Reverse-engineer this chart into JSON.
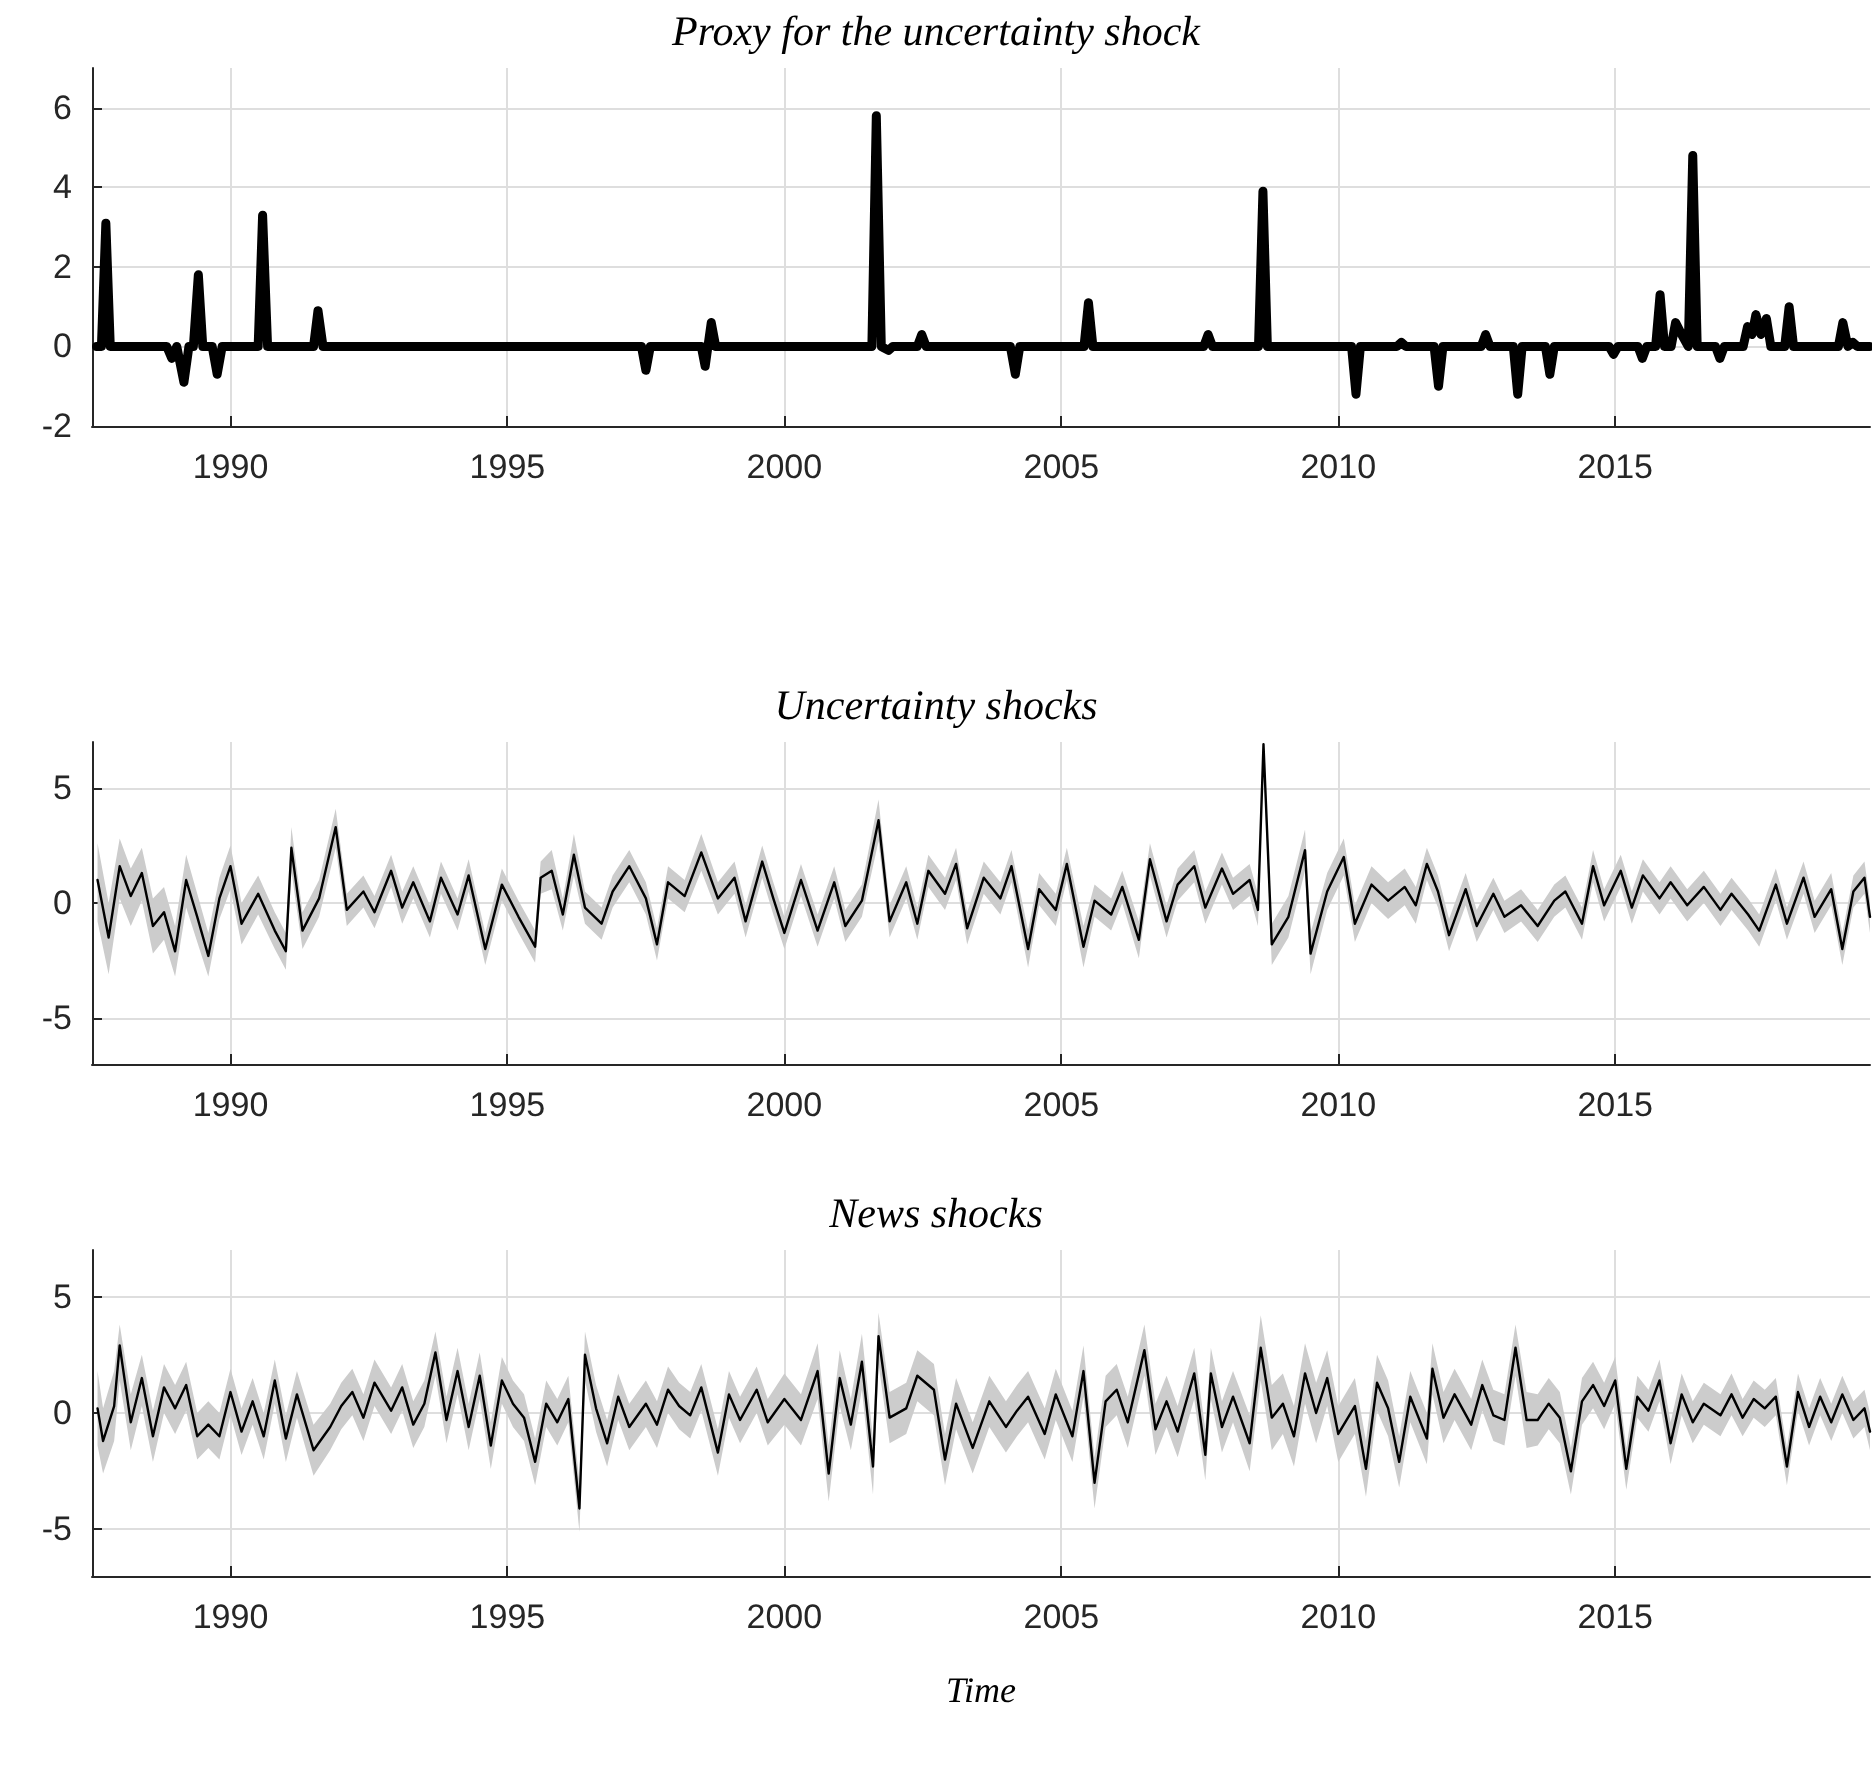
{
  "chart_data": [
    {
      "type": "line",
      "title": "Proxy for the uncertainty shock",
      "xlim": [
        1987.5,
        2019.6
      ],
      "xticks": [
        1990,
        1995,
        2000,
        2005,
        2010,
        2015
      ],
      "ylim": [
        -2,
        7
      ],
      "yticks": [
        -2,
        0,
        2,
        4,
        6
      ],
      "grid": true,
      "series": [
        {
          "color": "#000000",
          "x": [
            1987.58,
            1987.67,
            1987.75,
            1987.83,
            1988.85,
            1988.94,
            1989.03,
            1989.16,
            1989.25,
            1989.33,
            1989.42,
            1989.5,
            1989.67,
            1989.76,
            1989.85,
            1990.5,
            1990.58,
            1990.67,
            1991.5,
            1991.58,
            1991.67,
            1997.42,
            1997.5,
            1997.58,
            1998.5,
            1998.57,
            1998.68,
            1998.76,
            2001.58,
            2001.66,
            2001.75,
            2001.88,
            2001.96,
            2002.4,
            2002.48,
            2002.56,
            2004.08,
            2004.17,
            2004.25,
            2005.41,
            2005.49,
            2005.57,
            2007.57,
            2007.65,
            2007.73,
            2008.56,
            2008.64,
            2008.72,
            2010.24,
            2010.32,
            2010.4,
            2011.06,
            2011.14,
            2011.22,
            2011.73,
            2011.81,
            2011.89,
            2012.58,
            2012.66,
            2012.74,
            2013.16,
            2013.24,
            2013.32,
            2013.74,
            2013.82,
            2013.9,
            2014.89,
            2014.97,
            2015.05,
            2015.41,
            2015.49,
            2015.57,
            2015.73,
            2015.81,
            2015.89,
            2016.01,
            2016.09,
            2016.2,
            2016.32,
            2016.4,
            2016.48,
            2016.81,
            2016.89,
            2016.97,
            2017.31,
            2017.39,
            2017.47,
            2017.54,
            2017.63,
            2017.73,
            2017.81,
            2018.06,
            2018.14,
            2018.22,
            2019.03,
            2019.11,
            2019.2,
            2019.29,
            2019.37,
            2019.6
          ],
          "values": [
            0,
            0,
            3.1,
            0,
            0,
            -0.3,
            0,
            -0.9,
            0,
            0,
            1.8,
            0,
            0,
            -0.7,
            0,
            0,
            3.3,
            0,
            0,
            0.9,
            0,
            0,
            -0.6,
            0,
            0,
            -0.5,
            0.6,
            0,
            0,
            5.8,
            0,
            -0.1,
            0,
            0,
            0.3,
            0,
            0,
            -0.7,
            0,
            0,
            1.1,
            0,
            0,
            0.3,
            0,
            0,
            3.9,
            0,
            0,
            -1.2,
            0,
            0,
            0.1,
            0,
            0,
            -1.0,
            0,
            0,
            0.3,
            0,
            0,
            -1.2,
            0,
            0,
            -0.7,
            0,
            0,
            -0.2,
            0,
            0,
            -0.3,
            0,
            0,
            1.3,
            0,
            0,
            0.6,
            0.3,
            0,
            4.8,
            0,
            0,
            -0.3,
            0,
            0,
            0.5,
            0.3,
            0.8,
            0.3,
            0.7,
            0,
            0,
            1.0,
            0,
            0,
            0.6,
            0,
            0.1,
            0,
            0
          ]
        }
      ]
    },
    {
      "type": "line",
      "title": "Uncertainty shocks",
      "xlim": [
        1987.5,
        2019.6
      ],
      "xticks": [
        1990,
        1995,
        2000,
        2005,
        2010,
        2015
      ],
      "ylim": [
        -7,
        7
      ],
      "yticks": [
        -5,
        0,
        5
      ],
      "grid": true,
      "series": [
        {
          "color": "#000000",
          "x": [
            1987.6,
            1987.8,
            1988.0,
            1988.2,
            1988.4,
            1988.6,
            1988.8,
            1989.0,
            1989.2,
            1989.4,
            1989.6,
            1989.8,
            1990.0,
            1990.2,
            1990.5,
            1990.8,
            1991.0,
            1991.1,
            1991.3,
            1991.6,
            1991.9,
            1992.1,
            1992.4,
            1992.6,
            1992.9,
            1993.1,
            1993.3,
            1993.6,
            1993.8,
            1994.1,
            1994.3,
            1994.6,
            1994.9,
            1995.2,
            1995.5,
            1995.6,
            1995.8,
            1996.0,
            1996.2,
            1996.4,
            1996.7,
            1996.9,
            1997.2,
            1997.5,
            1997.7,
            1997.9,
            1998.2,
            1998.5,
            1998.8,
            1999.1,
            1999.3,
            1999.6,
            1999.8,
            2000.0,
            2000.3,
            2000.6,
            2000.9,
            2001.1,
            2001.4,
            2001.7,
            2001.9,
            2002.2,
            2002.4,
            2002.6,
            2002.9,
            2003.1,
            2003.3,
            2003.6,
            2003.9,
            2004.1,
            2004.4,
            2004.6,
            2004.9,
            2005.1,
            2005.4,
            2005.6,
            2005.9,
            2006.1,
            2006.4,
            2006.6,
            2006.9,
            2007.1,
            2007.4,
            2007.6,
            2007.9,
            2008.1,
            2008.4,
            2008.55,
            2008.65,
            2008.8,
            2009.1,
            2009.4,
            2009.5,
            2009.8,
            2010.1,
            2010.3,
            2010.6,
            2010.9,
            2011.2,
            2011.4,
            2011.6,
            2011.8,
            2012.0,
            2012.3,
            2012.5,
            2012.8,
            2013.0,
            2013.3,
            2013.6,
            2013.9,
            2014.1,
            2014.4,
            2014.6,
            2014.8,
            2015.1,
            2015.3,
            2015.5,
            2015.8,
            2016.0,
            2016.3,
            2016.6,
            2016.9,
            2017.1,
            2017.4,
            2017.6,
            2017.9,
            2018.1,
            2018.4,
            2018.6,
            2018.9,
            2019.1,
            2019.3,
            2019.5,
            2019.6
          ],
          "values": [
            1.0,
            -1.5,
            1.6,
            0.3,
            1.3,
            -1.0,
            -0.4,
            -2.1,
            1.0,
            -0.6,
            -2.3,
            0.2,
            1.6,
            -0.9,
            0.4,
            -1.2,
            -2.1,
            2.4,
            -1.2,
            0.2,
            3.3,
            -0.3,
            0.5,
            -0.4,
            1.4,
            -0.2,
            0.9,
            -0.8,
            1.1,
            -0.5,
            1.2,
            -2.0,
            0.8,
            -0.6,
            -1.9,
            1.1,
            1.4,
            -0.5,
            2.1,
            -0.2,
            -0.9,
            0.5,
            1.6,
            0.2,
            -1.8,
            0.9,
            0.3,
            2.2,
            0.2,
            1.1,
            -0.8,
            1.8,
            0.2,
            -1.3,
            1.0,
            -1.2,
            0.9,
            -1.0,
            0.1,
            3.6,
            -0.8,
            0.9,
            -0.9,
            1.4,
            0.4,
            1.7,
            -1.1,
            1.1,
            0.2,
            1.6,
            -2.0,
            0.6,
            -0.3,
            1.7,
            -1.9,
            0.1,
            -0.5,
            0.7,
            -1.6,
            1.9,
            -0.8,
            0.8,
            1.6,
            -0.2,
            1.5,
            0.4,
            1.0,
            -0.3,
            6.9,
            -1.8,
            -0.6,
            2.3,
            -2.2,
            0.5,
            2.0,
            -0.9,
            0.8,
            0.1,
            0.7,
            -0.1,
            1.7,
            0.5,
            -1.4,
            0.6,
            -1.0,
            0.4,
            -0.6,
            -0.1,
            -1.0,
            0.1,
            0.5,
            -0.9,
            1.6,
            -0.1,
            1.4,
            -0.2,
            1.2,
            0.2,
            0.9,
            -0.1,
            0.7,
            -0.3,
            0.4,
            -0.5,
            -1.2,
            0.8,
            -0.9,
            1.1,
            -0.6,
            0.6,
            -2.0,
            0.5,
            1.1,
            -0.6
          ],
          "lower": [
            -0.8,
            -3.1,
            0.2,
            -1.0,
            0.1,
            -2.2,
            -1.6,
            -3.2,
            -0.2,
            -1.7,
            -3.2,
            -0.7,
            0.6,
            -1.8,
            -0.5,
            -2.0,
            -2.9,
            1.4,
            -2.0,
            -0.6,
            2.4,
            -1.0,
            -0.2,
            -1.1,
            0.7,
            -0.9,
            0.2,
            -1.5,
            0.4,
            -1.2,
            0.5,
            -2.7,
            0.1,
            -1.3,
            -2.6,
            0.4,
            0.6,
            -1.2,
            1.2,
            -0.9,
            -1.6,
            -0.2,
            0.9,
            -0.5,
            -2.5,
            0.2,
            -0.4,
            1.4,
            -0.5,
            0.4,
            -1.5,
            1.1,
            -0.5,
            -2.0,
            0.3,
            -1.9,
            0.2,
            -1.7,
            -0.6,
            2.7,
            -1.5,
            0.2,
            -1.6,
            0.7,
            -0.3,
            1.0,
            -1.8,
            0.4,
            -0.5,
            0.9,
            -2.8,
            -0.1,
            -1.0,
            1.0,
            -2.8,
            -0.6,
            -1.2,
            0.0,
            -2.4,
            1.2,
            -1.5,
            0.1,
            0.9,
            -0.9,
            0.8,
            -0.3,
            0.3,
            -1.0,
            6.0,
            -2.7,
            -1.5,
            1.4,
            -3.1,
            -0.3,
            1.2,
            -1.7,
            0.0,
            -0.7,
            -0.1,
            -0.9,
            1.0,
            -0.2,
            -2.1,
            -0.1,
            -1.7,
            -0.3,
            -1.3,
            -0.8,
            -1.7,
            -0.6,
            -0.2,
            -1.6,
            0.9,
            -0.8,
            0.7,
            -0.9,
            0.5,
            -0.5,
            0.2,
            -0.8,
            0.0,
            -1.0,
            -0.3,
            -1.2,
            -1.9,
            0.1,
            -1.6,
            0.4,
            -1.3,
            -0.1,
            -2.7,
            -0.2,
            0.4,
            -1.3
          ],
          "upper": [
            2.6,
            0.0,
            2.8,
            1.5,
            2.4,
            0.2,
            0.7,
            -1.0,
            2.1,
            0.4,
            -1.3,
            1.1,
            2.5,
            0.0,
            1.2,
            -0.4,
            -1.3,
            3.3,
            -0.4,
            1.0,
            4.1,
            0.4,
            1.2,
            0.3,
            2.1,
            0.5,
            1.6,
            -0.1,
            1.8,
            0.2,
            1.9,
            -1.3,
            1.5,
            0.1,
            -1.2,
            1.8,
            2.3,
            0.2,
            3.0,
            0.5,
            -0.2,
            1.2,
            2.3,
            0.9,
            -1.1,
            1.6,
            1.0,
            3.0,
            0.9,
            1.8,
            -0.1,
            2.5,
            0.9,
            -0.6,
            1.7,
            -0.5,
            1.6,
            -0.3,
            0.8,
            4.5,
            -0.1,
            1.6,
            -0.2,
            2.1,
            1.1,
            2.4,
            -0.4,
            1.8,
            0.9,
            2.3,
            -1.2,
            1.3,
            0.4,
            2.4,
            -1.0,
            0.8,
            0.2,
            1.4,
            -0.8,
            2.6,
            -0.1,
            1.5,
            2.3,
            0.5,
            2.2,
            1.1,
            1.7,
            0.4,
            7.0,
            -0.9,
            0.3,
            3.2,
            -1.3,
            1.3,
            2.8,
            -0.1,
            1.6,
            0.9,
            1.5,
            0.7,
            2.4,
            1.2,
            -0.7,
            1.3,
            -0.3,
            1.1,
            0.1,
            0.6,
            -0.3,
            0.8,
            1.2,
            -0.2,
            2.3,
            0.6,
            2.1,
            0.5,
            1.9,
            0.9,
            1.6,
            0.6,
            1.4,
            0.4,
            1.1,
            0.2,
            -0.5,
            1.5,
            -0.2,
            1.8,
            0.1,
            1.3,
            -1.3,
            1.2,
            1.8,
            0.1
          ]
        }
      ]
    },
    {
      "type": "line",
      "title": "News shocks",
      "xlabel": "Time",
      "xlim": [
        1987.5,
        2019.6
      ],
      "xticks": [
        1990,
        1995,
        2000,
        2005,
        2010,
        2015
      ],
      "ylim": [
        -7,
        7
      ],
      "yticks": [
        -5,
        0,
        5
      ],
      "grid": true,
      "series": [
        {
          "color": "#000000",
          "x": [
            1987.6,
            1987.7,
            1987.9,
            1988.0,
            1988.2,
            1988.4,
            1988.6,
            1988.8,
            1989.0,
            1989.2,
            1989.4,
            1989.6,
            1989.8,
            1990.0,
            1990.2,
            1990.4,
            1990.6,
            1990.8,
            1991.0,
            1991.2,
            1991.5,
            1991.8,
            1992.0,
            1992.2,
            1992.4,
            1992.6,
            1992.9,
            1993.1,
            1993.3,
            1993.5,
            1993.7,
            1993.9,
            1994.1,
            1994.3,
            1994.5,
            1994.7,
            1994.9,
            1995.1,
            1995.3,
            1995.5,
            1995.7,
            1995.9,
            1996.1,
            1996.3,
            1996.4,
            1996.6,
            1996.8,
            1997.0,
            1997.2,
            1997.5,
            1997.7,
            1997.9,
            1998.1,
            1998.3,
            1998.5,
            1998.8,
            1999.0,
            1999.2,
            1999.5,
            1999.7,
            2000.0,
            2000.3,
            2000.6,
            2000.8,
            2001.0,
            2001.2,
            2001.4,
            2001.6,
            2001.7,
            2001.9,
            2002.2,
            2002.4,
            2002.7,
            2002.9,
            2003.1,
            2003.4,
            2003.7,
            2004.0,
            2004.2,
            2004.4,
            2004.7,
            2004.9,
            2005.2,
            2005.4,
            2005.6,
            2005.8,
            2006.0,
            2006.2,
            2006.5,
            2006.7,
            2006.9,
            2007.1,
            2007.4,
            2007.6,
            2007.7,
            2007.9,
            2008.1,
            2008.4,
            2008.6,
            2008.8,
            2009.0,
            2009.2,
            2009.4,
            2009.6,
            2009.8,
            2010.0,
            2010.3,
            2010.5,
            2010.7,
            2010.9,
            2011.1,
            2011.3,
            2011.6,
            2011.7,
            2011.9,
            2012.1,
            2012.4,
            2012.6,
            2012.8,
            2013.0,
            2013.2,
            2013.4,
            2013.6,
            2013.8,
            2014.0,
            2014.2,
            2014.4,
            2014.6,
            2014.8,
            2015.0,
            2015.2,
            2015.4,
            2015.6,
            2015.8,
            2016.0,
            2016.2,
            2016.4,
            2016.6,
            2016.9,
            2017.1,
            2017.3,
            2017.5,
            2017.7,
            2017.9,
            2018.1,
            2018.3,
            2018.5,
            2018.7,
            2018.9,
            2019.1,
            2019.3,
            2019.5,
            2019.6
          ],
          "values": [
            0.2,
            -1.2,
            0.3,
            2.9,
            -0.4,
            1.5,
            -1.0,
            1.1,
            0.2,
            1.2,
            -1.0,
            -0.5,
            -1.0,
            0.9,
            -0.8,
            0.5,
            -1.0,
            1.4,
            -1.1,
            0.8,
            -1.6,
            -0.6,
            0.3,
            0.9,
            -0.2,
            1.3,
            0.1,
            1.1,
            -0.5,
            0.4,
            2.6,
            -0.3,
            1.8,
            -0.6,
            1.6,
            -1.4,
            1.4,
            0.4,
            -0.2,
            -2.1,
            0.4,
            -0.4,
            0.6,
            -4.1,
            2.5,
            0.2,
            -1.3,
            0.7,
            -0.6,
            0.4,
            -0.5,
            1.0,
            0.3,
            -0.1,
            1.1,
            -1.7,
            0.8,
            -0.3,
            1.0,
            -0.4,
            0.6,
            -0.3,
            1.8,
            -2.6,
            1.5,
            -0.5,
            2.2,
            -2.3,
            3.3,
            -0.2,
            0.2,
            1.6,
            1.0,
            -2.0,
            0.4,
            -1.5,
            0.5,
            -0.6,
            0.1,
            0.7,
            -0.9,
            0.8,
            -1.0,
            1.8,
            -3.0,
            0.5,
            1.0,
            -0.4,
            2.7,
            -0.7,
            0.5,
            -0.8,
            1.7,
            -1.8,
            1.7,
            -0.6,
            0.7,
            -1.3,
            2.8,
            -0.2,
            0.4,
            -1.0,
            1.7,
            0.0,
            1.5,
            -0.9,
            0.3,
            -2.4,
            1.3,
            0.2,
            -2.1,
            0.7,
            -1.1,
            1.9,
            -0.2,
            0.8,
            -0.5,
            1.2,
            -0.1,
            -0.3,
            2.8,
            -0.3,
            -0.3,
            0.4,
            -0.2,
            -2.5,
            0.5,
            1.2,
            0.3,
            1.4,
            -2.4,
            0.7,
            0.1,
            1.4,
            -1.3,
            0.8,
            -0.4,
            0.4,
            -0.1,
            0.8,
            -0.2,
            0.6,
            0.2,
            0.7,
            -2.3,
            0.9,
            -0.6,
            0.7,
            -0.4,
            0.8,
            -0.3,
            0.2,
            -0.8
          ],
          "lower": [
            -1.4,
            -2.6,
            -1.2,
            1.4,
            -1.6,
            0.3,
            -2.1,
            0.0,
            -0.9,
            0.1,
            -2.0,
            -1.5,
            -2.0,
            -0.1,
            -1.8,
            -0.5,
            -2.0,
            0.4,
            -2.1,
            -0.2,
            -2.7,
            -1.6,
            -0.7,
            -0.1,
            -1.2,
            0.3,
            -0.9,
            0.1,
            -1.5,
            -0.6,
            1.6,
            -1.3,
            0.8,
            -1.6,
            0.6,
            -2.4,
            0.4,
            -0.6,
            -1.2,
            -3.1,
            -0.6,
            -1.4,
            -0.4,
            -5.1,
            1.4,
            -0.8,
            -2.3,
            -0.3,
            -1.6,
            -0.6,
            -1.5,
            0.0,
            -0.7,
            -1.1,
            0.1,
            -2.7,
            -0.2,
            -1.3,
            0.0,
            -1.4,
            -0.5,
            -1.4,
            0.6,
            -3.8,
            0.3,
            -1.6,
            1.0,
            -3.5,
            2.1,
            -1.3,
            -0.9,
            0.5,
            -0.1,
            -3.1,
            -0.7,
            -2.6,
            -0.6,
            -1.7,
            -1.0,
            -0.4,
            -2.0,
            -0.3,
            -2.1,
            0.7,
            -4.1,
            -0.6,
            -0.1,
            -1.5,
            1.6,
            -1.8,
            -0.6,
            -1.9,
            0.6,
            -2.9,
            0.6,
            -1.7,
            -0.4,
            -2.5,
            1.4,
            -1.6,
            -0.9,
            -2.3,
            0.4,
            -1.3,
            0.3,
            -2.1,
            -0.9,
            -3.6,
            0.1,
            -1.0,
            -3.2,
            -0.4,
            -2.2,
            0.8,
            -1.3,
            -0.3,
            -1.6,
            0.1,
            -1.2,
            -1.4,
            1.6,
            -1.5,
            -1.4,
            -0.7,
            -1.3,
            -3.5,
            -0.5,
            0.2,
            -0.7,
            0.4,
            -3.3,
            -0.2,
            -0.8,
            0.5,
            -2.2,
            -0.1,
            -1.3,
            -0.5,
            -1.0,
            -0.1,
            -1.0,
            -0.2,
            -0.6,
            -0.1,
            -3.1,
            0.1,
            -1.4,
            -0.1,
            -1.2,
            0.0,
            -1.1,
            -0.6,
            -1.6
          ],
          "upper": [
            1.8,
            0.2,
            1.8,
            3.8,
            0.8,
            2.5,
            0.1,
            2.1,
            1.2,
            2.2,
            0.0,
            0.5,
            0.0,
            1.9,
            0.2,
            1.5,
            0.0,
            2.3,
            -0.1,
            1.8,
            -0.5,
            0.4,
            1.3,
            1.9,
            0.8,
            2.3,
            1.1,
            2.1,
            0.5,
            1.4,
            3.5,
            0.7,
            2.8,
            0.4,
            2.6,
            -0.4,
            2.4,
            1.4,
            0.8,
            -1.1,
            1.4,
            0.6,
            1.6,
            -3.0,
            3.5,
            1.2,
            -0.3,
            1.7,
            0.4,
            1.4,
            0.5,
            2.0,
            1.3,
            0.9,
            2.1,
            -0.7,
            1.8,
            0.7,
            2.0,
            0.6,
            1.7,
            0.8,
            3.0,
            -1.4,
            2.7,
            0.6,
            3.4,
            -1.1,
            4.3,
            0.9,
            1.3,
            2.7,
            2.1,
            -0.9,
            1.5,
            -0.4,
            1.6,
            0.5,
            1.2,
            1.8,
            0.2,
            1.9,
            0.1,
            2.9,
            -1.9,
            1.6,
            2.1,
            0.7,
            3.8,
            0.4,
            1.6,
            0.3,
            2.8,
            -0.7,
            2.8,
            0.5,
            1.8,
            -0.1,
            4.2,
            1.2,
            1.7,
            0.3,
            3.0,
            1.3,
            2.7,
            0.3,
            1.5,
            -1.2,
            2.5,
            1.4,
            -1.0,
            1.8,
            0.0,
            3.0,
            0.9,
            1.9,
            0.6,
            2.3,
            1.0,
            0.8,
            3.8,
            0.9,
            0.8,
            1.5,
            0.9,
            -1.5,
            1.5,
            2.2,
            1.3,
            2.4,
            -1.5,
            1.6,
            1.0,
            2.3,
            -0.4,
            1.7,
            0.5,
            1.3,
            0.8,
            1.7,
            0.6,
            1.4,
            1.0,
            1.5,
            -1.5,
            1.7,
            0.2,
            1.5,
            0.4,
            1.6,
            0.5,
            1.0,
            0.0
          ]
        }
      ]
    }
  ]
}
